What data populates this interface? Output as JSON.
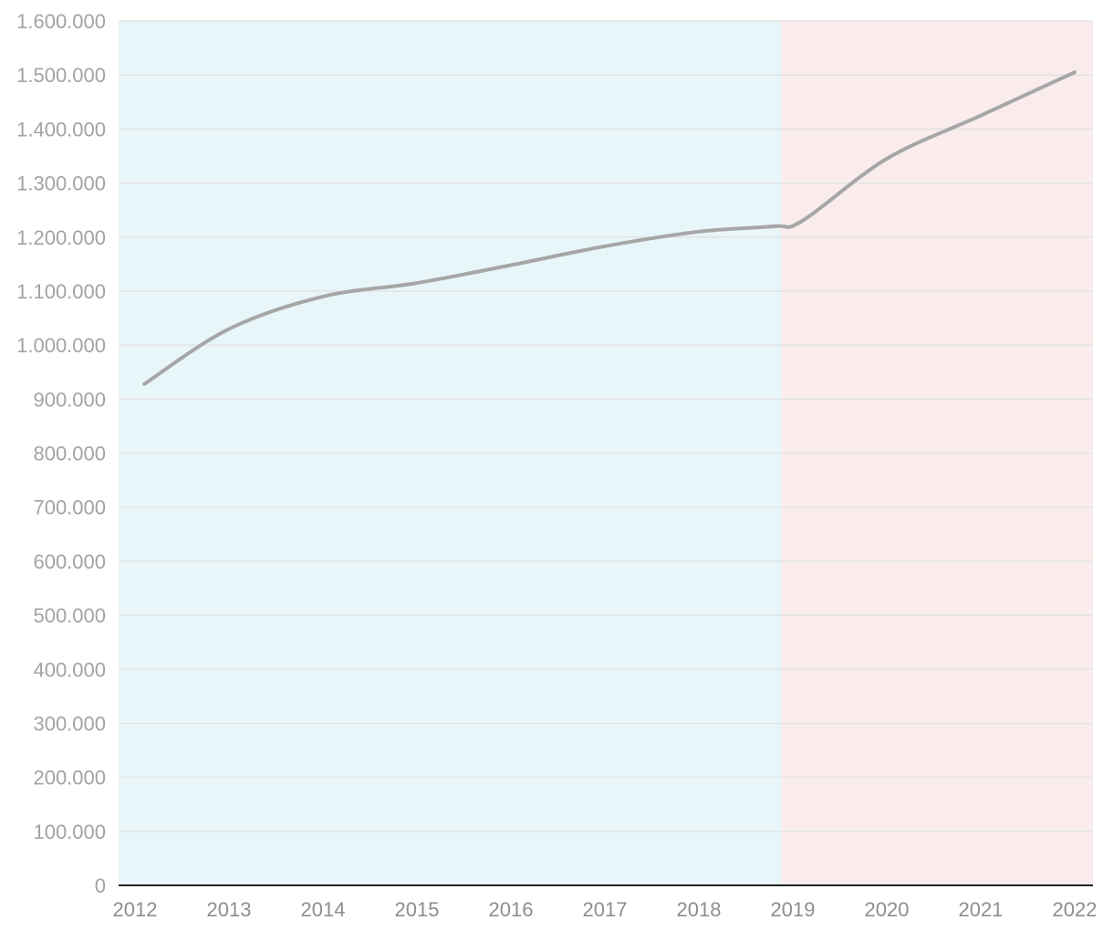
{
  "chart_data": {
    "type": "line",
    "title": "",
    "xlabel": "",
    "ylabel": "",
    "x_ticks": [
      "2012",
      "2013",
      "2014",
      "2015",
      "2016",
      "2017",
      "2018",
      "2019",
      "2020",
      "2021",
      "2022"
    ],
    "y_ticks": [
      "0",
      "100.000",
      "200.000",
      "300.000",
      "400.000",
      "500.000",
      "600.000",
      "700.000",
      "800.000",
      "900.000",
      "1.000.000",
      "1.100.000",
      "1.200.000",
      "1.300.000",
      "1.400.000",
      "1.500.000",
      "1.600.000"
    ],
    "xlim": [
      2012,
      2022
    ],
    "ylim": [
      0,
      1600000
    ],
    "grid": true,
    "legend": "none",
    "shaded_periods": [
      {
        "from": 2012,
        "to": 2018.8,
        "color": "#e8f6fa"
      },
      {
        "from": 2018.8,
        "to": 2022,
        "color": "#faecec"
      }
    ],
    "series": [
      {
        "color": "#a6a6a6",
        "x": [
          2012.1,
          2013,
          2014,
          2015,
          2016,
          2017,
          2018,
          2018.8,
          2019.1,
          2020,
          2021,
          2022
        ],
        "y": [
          928000,
          1030000,
          1090000,
          1115000,
          1148000,
          1183000,
          1210000,
          1220000,
          1230000,
          1345000,
          1425000,
          1505000
        ]
      }
    ]
  }
}
